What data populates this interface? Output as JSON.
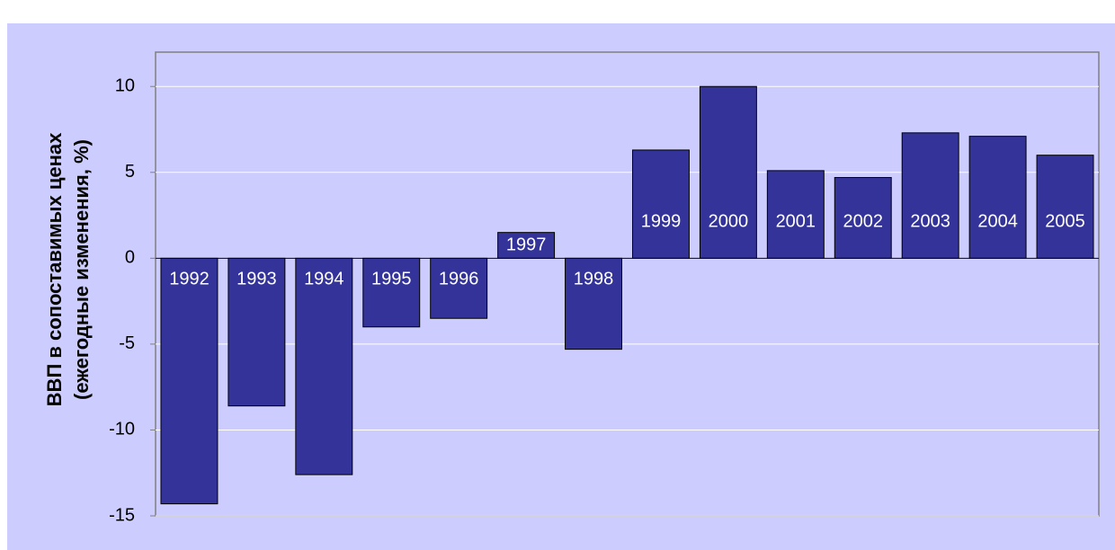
{
  "chart_data": {
    "type": "bar",
    "ylabel": [
      "ВВП в сопоставимых ценах",
      "(ежегодные изменения, %)"
    ],
    "categories": [
      "1992",
      "1993",
      "1994",
      "1995",
      "1996",
      "1997",
      "1998",
      "1999",
      "2000",
      "2001",
      "2002",
      "2003",
      "2004",
      "2005"
    ],
    "values": [
      -14.3,
      -8.6,
      -12.6,
      -4.0,
      -3.5,
      1.5,
      -5.3,
      6.3,
      10.0,
      5.1,
      4.7,
      7.3,
      7.1,
      6.0
    ],
    "color": "#333399",
    "ylim": [
      -15,
      12
    ],
    "yticks": [
      -15,
      -10,
      -5,
      0,
      5,
      10
    ],
    "grid": true
  }
}
